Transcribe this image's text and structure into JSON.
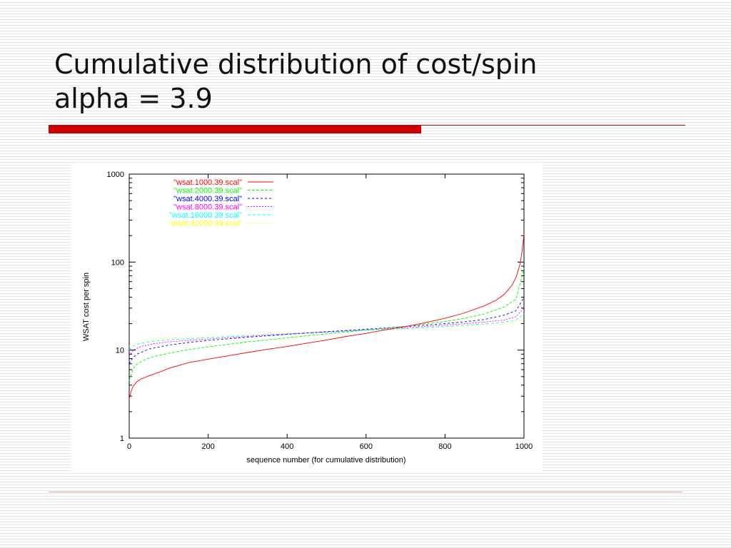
{
  "slide": {
    "title_line1": "Cumulative distribution of cost/spin",
    "title_line2": "alpha = 3.9",
    "accent_color": "#cc0000"
  },
  "chart_data": {
    "type": "line",
    "title": "",
    "xlabel": "sequence number (for cumulative distribution)",
    "ylabel": "WSAT cost per spin",
    "xlim": [
      0,
      1000
    ],
    "ylim": [
      1,
      1000
    ],
    "yscale": "log",
    "grid": false,
    "legend_position": "top-left",
    "x_ticks": [
      0,
      200,
      400,
      600,
      800,
      1000
    ],
    "x_tick_labels": [
      "0",
      "200",
      "400",
      "600",
      "800",
      "1000"
    ],
    "y_ticks": [
      1,
      10,
      100,
      1000
    ],
    "y_tick_labels": [
      "1",
      "10",
      "100",
      "1000"
    ],
    "series": [
      {
        "name": "\"wsat.1000.39.scal\"",
        "color": "#ff0000",
        "x": [
          0,
          5,
          10,
          20,
          30,
          50,
          80,
          100,
          150,
          200,
          250,
          300,
          350,
          400,
          450,
          500,
          550,
          600,
          650,
          700,
          750,
          800,
          850,
          900,
          930,
          950,
          970,
          980,
          990,
          995,
          998,
          1000
        ],
        "y": [
          2.8,
          3.4,
          3.9,
          4.4,
          4.7,
          5.1,
          5.7,
          6.2,
          7.2,
          7.9,
          8.6,
          9.4,
          10.2,
          11.0,
          12.0,
          13.0,
          14.3,
          15.5,
          17.0,
          18.5,
          20.5,
          23.0,
          26.5,
          32.0,
          37.0,
          43.0,
          55.0,
          67.0,
          95.0,
          130.0,
          170.0,
          210.0
        ]
      },
      {
        "name": "\"wsat.2000.39.scal\"",
        "color": "#00ff00",
        "x": [
          0,
          10,
          20,
          40,
          60,
          100,
          150,
          200,
          300,
          400,
          500,
          600,
          700,
          800,
          850,
          900,
          950,
          980,
          1000
        ],
        "y": [
          4.5,
          6.2,
          7.0,
          7.8,
          8.4,
          9.2,
          10.1,
          10.9,
          12.4,
          13.8,
          15.3,
          16.9,
          18.7,
          21.2,
          23.0,
          25.8,
          31.0,
          38.0,
          85.0
        ]
      },
      {
        "name": "\"wsat.4000.39.scal\"",
        "color": "#0000ff",
        "x": [
          0,
          10,
          20,
          50,
          100,
          150,
          200,
          300,
          400,
          500,
          600,
          700,
          800,
          850,
          900,
          950,
          980,
          1000
        ],
        "y": [
          7.0,
          8.3,
          9.0,
          10.3,
          11.4,
          12.2,
          12.9,
          14.0,
          15.1,
          16.2,
          17.3,
          18.5,
          20.0,
          21.0,
          22.3,
          25.0,
          28.0,
          40.0
        ]
      },
      {
        "name": "\"wsat.8000.39.scal\"",
        "color": "#ff00ff",
        "x": [
          0,
          10,
          30,
          60,
          100,
          200,
          300,
          400,
          500,
          600,
          700,
          800,
          900,
          950,
          980,
          1000
        ],
        "y": [
          8.5,
          10.0,
          11.0,
          11.8,
          12.4,
          13.4,
          14.3,
          15.2,
          16.1,
          17.0,
          18.0,
          19.2,
          20.8,
          22.0,
          24.0,
          30.0
        ]
      },
      {
        "name": "\"wsat.16000.39.scal\"",
        "color": "#00ffff",
        "x": [
          0,
          10,
          30,
          60,
          100,
          200,
          300,
          400,
          500,
          600,
          700,
          800,
          900,
          950,
          980,
          1000
        ],
        "y": [
          10.0,
          11.2,
          12.0,
          12.6,
          13.1,
          13.9,
          14.6,
          15.3,
          16.0,
          16.8,
          17.6,
          18.5,
          19.8,
          20.8,
          22.0,
          26.0
        ]
      },
      {
        "name": "\"wsat.32000.39.scal\"",
        "color": "#ffff00",
        "x": [
          0,
          10,
          30,
          60,
          100,
          200,
          300,
          400,
          500,
          600,
          700,
          800,
          900,
          950,
          980,
          1000
        ],
        "y": [
          11.0,
          12.0,
          12.8,
          13.3,
          13.7,
          14.4,
          15.0,
          15.6,
          16.2,
          16.8,
          17.5,
          18.2,
          19.2,
          20.0,
          21.0,
          23.0
        ]
      }
    ]
  }
}
